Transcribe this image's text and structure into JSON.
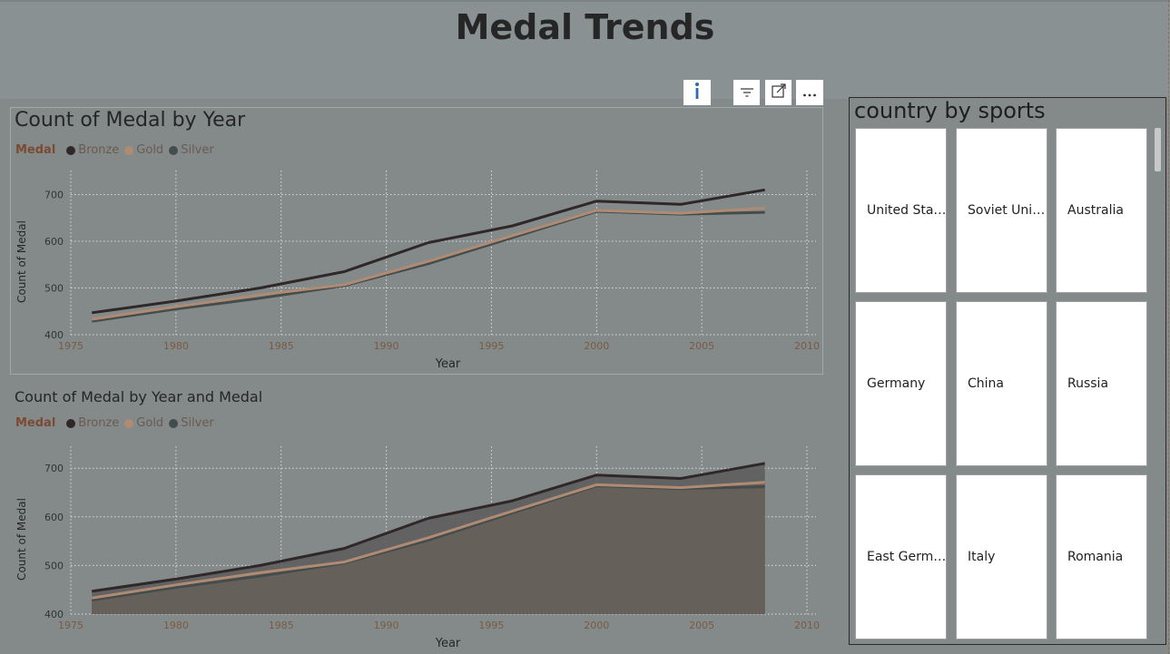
{
  "page": {
    "title": "Medal Trends"
  },
  "toolbar": {
    "icons": [
      "info-icon",
      "filter-icon",
      "focus-mode-icon",
      "more-options-icon"
    ]
  },
  "colors": {
    "bronze": "#2f2728",
    "gold": "#b08b74",
    "silver": "#444c4c"
  },
  "line_chart": {
    "title": "Count of Medal by Year",
    "legend_title": "Medal",
    "legend": [
      "Bronze",
      "Gold",
      "Silver"
    ]
  },
  "area_chart": {
    "title": "Count of Medal by Year and Medal",
    "legend_title": "Medal",
    "legend": [
      "Bronze",
      "Gold",
      "Silver"
    ]
  },
  "chart_data": [
    {
      "type": "line",
      "title": "Count of Medal by Year",
      "xlabel": "Year",
      "ylabel": "Count of Medal",
      "xlim": [
        1975,
        2010
      ],
      "ylim": [
        400,
        720
      ],
      "x_ticks": [
        1975,
        1980,
        1985,
        1990,
        1995,
        2000,
        2005,
        2010
      ],
      "y_ticks": [
        400,
        500,
        600,
        700
      ],
      "grid": true,
      "legend_position": "top-left",
      "x": [
        1976,
        1980,
        1984,
        1988,
        1992,
        1996,
        2000,
        2004,
        2008
      ],
      "series": [
        {
          "name": "Bronze",
          "values": [
            447,
            472,
            500,
            535,
            597,
            633,
            686,
            679,
            710
          ]
        },
        {
          "name": "Gold",
          "values": [
            433,
            460,
            485,
            507,
            557,
            612,
            666,
            660,
            671
          ]
        },
        {
          "name": "Silver",
          "values": [
            429,
            455,
            478,
            505,
            552,
            608,
            664,
            658,
            662
          ]
        }
      ]
    },
    {
      "type": "area",
      "title": "Count of Medal by Year and Medal",
      "xlabel": "Year",
      "ylabel": "Count of Medal",
      "xlim": [
        1975,
        2010
      ],
      "ylim": [
        400,
        720
      ],
      "x_ticks": [
        1975,
        1980,
        1985,
        1990,
        1995,
        2000,
        2005,
        2010
      ],
      "y_ticks": [
        400,
        500,
        600,
        700
      ],
      "grid": true,
      "legend_position": "top-left",
      "x": [
        1976,
        1980,
        1984,
        1988,
        1992,
        1996,
        2000,
        2004,
        2008
      ],
      "series": [
        {
          "name": "Bronze",
          "values": [
            447,
            472,
            500,
            535,
            597,
            633,
            686,
            679,
            710
          ]
        },
        {
          "name": "Gold",
          "values": [
            433,
            460,
            485,
            507,
            557,
            612,
            666,
            660,
            671
          ]
        },
        {
          "name": "Silver",
          "values": [
            429,
            455,
            478,
            505,
            552,
            608,
            664,
            658,
            662
          ]
        }
      ]
    }
  ],
  "slicer": {
    "title": "country by sports",
    "tiles": [
      "United Sta…",
      "Soviet Uni…",
      "Australia",
      "Germany",
      "China",
      "Russia",
      "East Germ…",
      "Italy",
      "Romania"
    ]
  }
}
